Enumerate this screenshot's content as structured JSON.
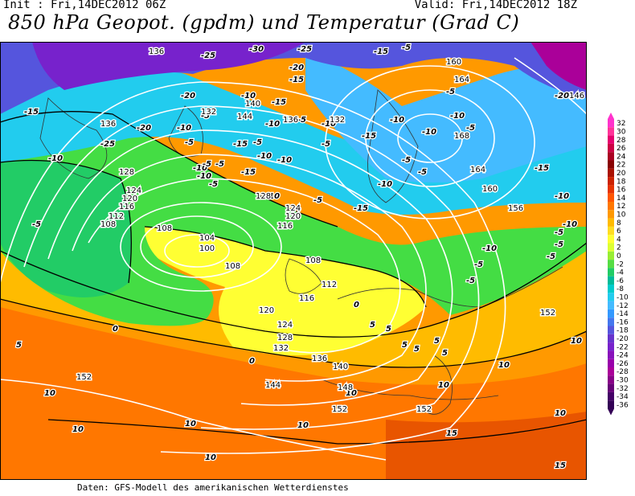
{
  "header": {
    "init": "Init : Fri,14DEC2012 06Z",
    "valid": "Valid: Fri,14DEC2012 18Z",
    "title": "850 hPa Geopot. (gpdm) und Temperatur (Grad C)"
  },
  "footer": "Daten: GFS-Modell des amerikanischen Wetterdienstes",
  "legend": {
    "labels": [
      "32",
      "30",
      "28",
      "26",
      "24",
      "22",
      "20",
      "18",
      "16",
      "14",
      "12",
      "10",
      "8",
      "6",
      "4",
      "2",
      "0",
      "-2",
      "-4",
      "-6",
      "-8",
      "-10",
      "-12",
      "-14",
      "-16",
      "-18",
      "-20",
      "-22",
      "-24",
      "-26",
      "-28",
      "-30",
      "-32",
      "-34",
      "-36"
    ],
    "colors": [
      "#ff33cc",
      "#ff3399",
      "#e6006e",
      "#cc0044",
      "#aa0022",
      "#880000",
      "#aa1100",
      "#cc2200",
      "#e63300",
      "#ff5500",
      "#ff7700",
      "#ff9900",
      "#ffbb00",
      "#ffdd22",
      "#ffff33",
      "#ddff33",
      "#99ee33",
      "#55dd44",
      "#22cc66",
      "#00bb99",
      "#00cccc",
      "#22ccee",
      "#44bbff",
      "#3399ff",
      "#4477ee",
      "#5555dd",
      "#6633cc",
      "#7722cc",
      "#8811bb",
      "#9900aa",
      "#aa0099",
      "#880088",
      "#660077",
      "#440066",
      "#330055"
    ]
  },
  "map": {
    "temp_labels": [
      "-25",
      "-30",
      "-25",
      "-20",
      "-15",
      "-20",
      "-10",
      "-5",
      "-15",
      "-10",
      "-5",
      "-25",
      "-10",
      "-20",
      "-10",
      "-5",
      "-15",
      "-10",
      "-5",
      "-10",
      "-5",
      "-15",
      "-10",
      "-5",
      "-5",
      "-10",
      "-5",
      "-10",
      "-5",
      "-15",
      "-10",
      "-5",
      "-5",
      "-10",
      "-15",
      "-5",
      "-10",
      "-5",
      "-15",
      "-5",
      "-10",
      "-5",
      "-5",
      "-20",
      "-15",
      "-10",
      "-5",
      "-10",
      "-5",
      "-10",
      "-5",
      "-15",
      "-10",
      "-5",
      "0",
      "0",
      "0",
      "5",
      "5",
      "5",
      "5",
      "5",
      "5",
      "5",
      "10",
      "10",
      "10",
      "10",
      "10",
      "10",
      "10",
      "10",
      "10",
      "10",
      "15",
      "15"
    ],
    "geopot_labels": [
      "136",
      "132",
      "136",
      "140",
      "144",
      "136",
      "132",
      "128",
      "124",
      "120",
      "116",
      "112",
      "108",
      "108",
      "104",
      "100",
      "108",
      "128",
      "124",
      "120",
      "116",
      "108",
      "112",
      "116",
      "120",
      "124",
      "128",
      "132",
      "136",
      "140",
      "144",
      "148",
      "152",
      "152",
      "152",
      "160",
      "164",
      "168",
      "164",
      "160",
      "156",
      "152",
      "146"
    ]
  }
}
